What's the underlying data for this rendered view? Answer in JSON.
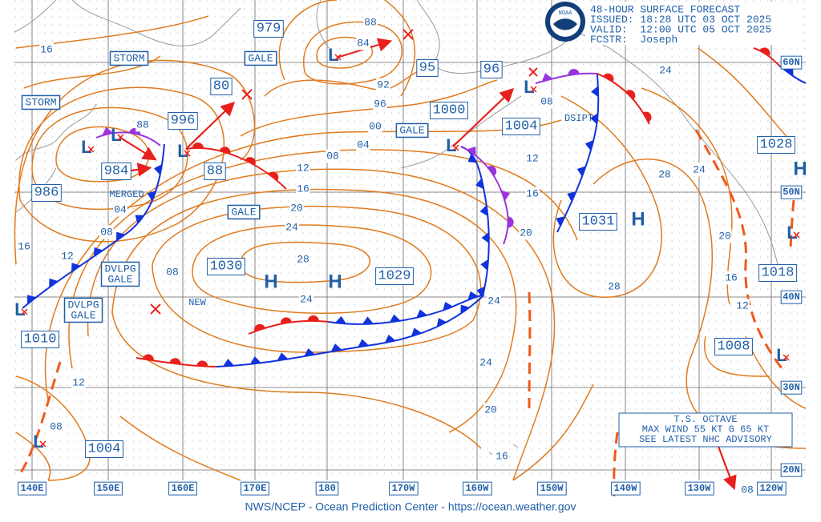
{
  "header": {
    "logo": "NOAA",
    "lines": [
      "48-HOUR SURFACE FORECAST",
      "ISSUED: 18:28 UTC 03 OCT 2025",
      "VALID:  12:00 UTC 05 OCT 2025",
      "FCSTR:  Joseph"
    ]
  },
  "footer": "NWS/NCEP - Ocean Prediction Center - https://ocean.weather.gov",
  "longitude_labels": [
    "140E",
    "150E",
    "160E",
    "170E",
    "180",
    "170W",
    "160W",
    "150W",
    "140W",
    "130W",
    "120W"
  ],
  "latitude_labels": [
    "60N",
    "50N",
    "40N",
    "30N",
    "20N"
  ],
  "center_pressures": [
    "979",
    "95",
    "96",
    "1000",
    "1004",
    "996",
    "984",
    "986",
    "80",
    "88",
    "1030",
    "1029",
    "1031",
    "1028",
    "1018",
    "1008",
    "1010",
    "1004"
  ],
  "isobar_labels": [
    "16",
    "88",
    "84",
    "92",
    "96",
    "00",
    "04",
    "08",
    "12",
    "16",
    "20",
    "24",
    "28",
    "24",
    "88",
    "04",
    "08",
    "12",
    "16",
    "08",
    "08",
    "12",
    "16",
    "20",
    "24",
    "24",
    "20",
    "16",
    "12",
    "08",
    "28",
    "28",
    "24",
    "24",
    "20",
    "16",
    "12",
    "08"
  ],
  "warnings": [
    [
      "STORM"
    ],
    [
      "STORM"
    ],
    [
      "GALE"
    ],
    [
      "GALE"
    ],
    [
      "GALE"
    ],
    [
      "DVLPG",
      "GALE"
    ],
    [
      "DVLPG",
      "GALE"
    ]
  ],
  "notes": [
    "MERGED",
    "NEW",
    "DSIPT"
  ],
  "highs": [
    "H",
    "H",
    "H",
    "H"
  ],
  "lows": [
    "L",
    "L",
    "L",
    "L",
    "L",
    "L",
    "L",
    "L",
    "L",
    "L"
  ],
  "advisory": [
    "T.S. OCTAVE",
    "MAX WIND 55 KT G 65 KT",
    "SEE LATEST NHC ADVISORY"
  ]
}
